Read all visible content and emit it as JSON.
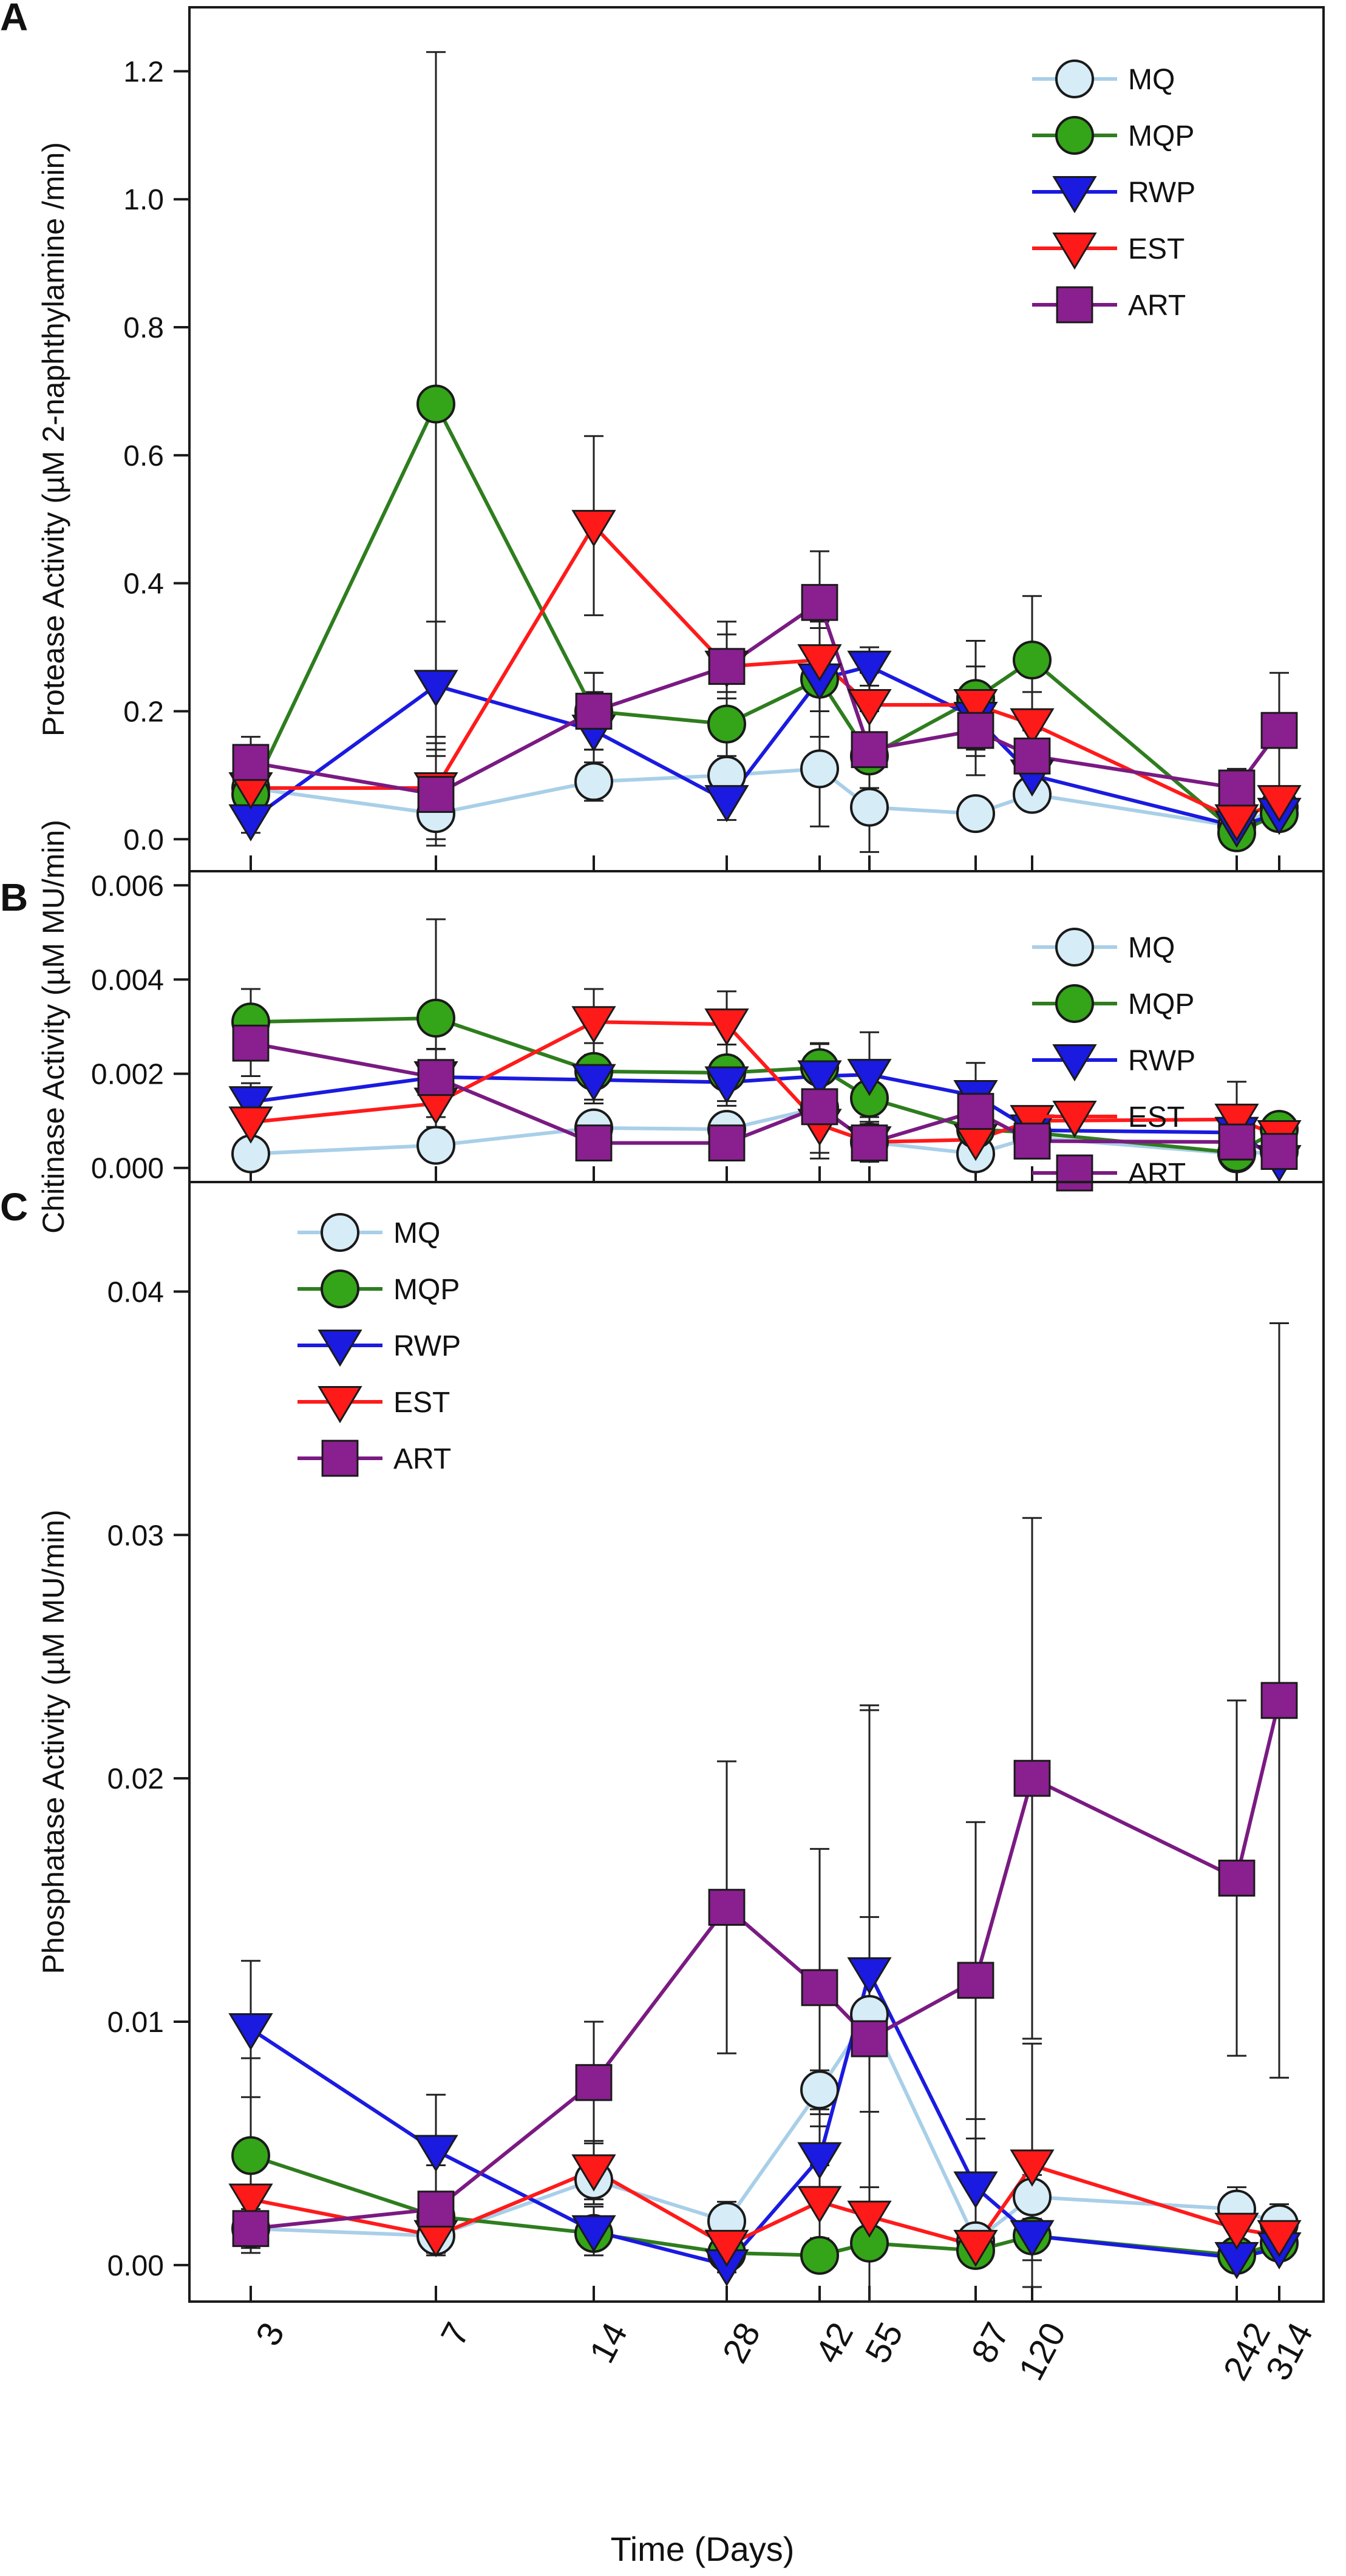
{
  "figure": {
    "xlabel": "Time (Days)",
    "x_tick_labels": [
      "3",
      "7",
      "14",
      "28",
      "42",
      "55",
      "87",
      "120",
      "242",
      "314"
    ]
  },
  "styles": {
    "MQ": {
      "color": "#a9cfe8",
      "fill": "#d6ecf7",
      "marker": "circle"
    },
    "MQP": {
      "color": "#2e7d1e",
      "fill": "#34a418",
      "marker": "circle"
    },
    "RWP": {
      "color": "#1a1ae0",
      "fill": "#1a1ae0",
      "marker": "triangle-down"
    },
    "EST": {
      "color": "#ff1a1a",
      "fill": "#ff1a1a",
      "marker": "triangle-down"
    },
    "ART": {
      "color": "#7a1a82",
      "fill": "#8a1f8f",
      "marker": "square"
    },
    "errorbar_color": "#222222"
  },
  "chart_data": [
    {
      "type": "line",
      "panel_label": "A",
      "title": "",
      "xlabel": "Time (Days)",
      "ylabel": "Protease Activity (µM 2-naphthylamine /min)",
      "x": [
        "3",
        "7",
        "14",
        "28",
        "42",
        "55",
        "87",
        "120",
        "242",
        "314"
      ],
      "ylim": [
        -0.05,
        1.3
      ],
      "yticks": [
        "0.0",
        "0.2",
        "0.4",
        "0.6",
        "0.8",
        "1.0",
        "1.2"
      ],
      "ytick_values": [
        0,
        0.2,
        0.4,
        0.6,
        0.8,
        1.0,
        1.2
      ],
      "legend_position": "top-right",
      "series": [
        {
          "name": "MQ",
          "values": [
            0.08,
            0.04,
            0.09,
            0.1,
            0.11,
            0.05,
            0.04,
            0.07,
            0.02,
            0.05
          ],
          "errors": [
            0.02,
            0.02,
            0.03,
            0.02,
            0.09,
            0.02,
            0.01,
            0.02,
            0.01,
            0.02
          ]
        },
        {
          "name": "MQP",
          "values": [
            0.07,
            0.68,
            0.2,
            0.18,
            0.25,
            0.13,
            0.22,
            0.28,
            0.01,
            0.04
          ],
          "errors": [
            0.04,
            0.55,
            0.06,
            0.05,
            0.05,
            0.15,
            0.09,
            0.1,
            0.01,
            0.02
          ]
        },
        {
          "name": "RWP",
          "values": [
            0.03,
            0.24,
            0.17,
            0.06,
            0.25,
            0.27,
            0.19,
            0.1,
            0.02,
            0.04
          ],
          "errors": [
            0.02,
            0.1,
            0.06,
            0.03,
            0.09,
            0.03,
            0.05,
            0.03,
            0.01,
            0.02
          ]
        },
        {
          "name": "EST",
          "values": [
            0.08,
            0.08,
            0.49,
            0.27,
            0.28,
            0.21,
            0.21,
            0.18,
            0.03,
            0.06
          ],
          "errors": [
            0.03,
            0.08,
            0.14,
            0.05,
            0.05,
            0.05,
            0.06,
            0.05,
            0.01,
            0.02
          ]
        },
        {
          "name": "ART",
          "values": [
            0.12,
            0.07,
            0.2,
            0.27,
            0.37,
            0.14,
            0.17,
            0.13,
            0.08,
            0.17
          ],
          "errors": [
            0.04,
            0.08,
            0.06,
            0.07,
            0.08,
            0.06,
            0.07,
            0.04,
            0.03,
            0.09
          ]
        }
      ]
    },
    {
      "type": "line",
      "panel_label": "B",
      "title": "",
      "xlabel": "Time (Days)",
      "ylabel": "Chitinase Activity (µM MU/min)",
      "x": [
        "3",
        "7",
        "14",
        "28",
        "42",
        "55",
        "87",
        "120",
        "242",
        "314"
      ],
      "ylim": [
        -0.0003,
        0.0063
      ],
      "yticks": [
        "0.000",
        "0.002",
        "0.004",
        "0.006"
      ],
      "ytick_values": [
        0,
        0.002,
        0.004,
        0.006
      ],
      "legend_position": "top-right",
      "series": [
        {
          "name": "MQ",
          "values": [
            0.0003,
            0.00048,
            0.00085,
            0.00082,
            0.00128,
            0.00055,
            0.0003,
            0.00065,
            0.0003,
            0.00035
          ],
          "errors": [
            0.0001,
            0.0001,
            0.0001,
            0.0001,
            0.0002,
            0.0001,
            0.0001,
            0.0001,
            0.0001,
            0.0001
          ]
        },
        {
          "name": "MQP",
          "values": [
            0.0031,
            0.00318,
            0.00205,
            0.00202,
            0.00213,
            0.00148,
            0.00082,
            0.00075,
            0.00032,
            0.00082
          ],
          "errors": [
            0.0007,
            0.0021,
            0.0006,
            0.0006,
            0.0005,
            0.0005,
            0.0003,
            0.0002,
            0.0002,
            0.0003
          ]
        },
        {
          "name": "RWP",
          "values": [
            0.0014,
            0.00193,
            0.00187,
            0.00182,
            0.00195,
            0.00198,
            0.00153,
            0.0008,
            0.00075,
            0.00015
          ],
          "errors": [
            0.0004,
            0.0006,
            0.0005,
            0.0005,
            0.0007,
            0.0009,
            0.0007,
            0.0002,
            0.0002,
            0.0001
          ]
        },
        {
          "name": "EST",
          "values": [
            0.00097,
            0.00137,
            0.0031,
            0.00305,
            0.00092,
            0.00055,
            0.0006,
            0.001,
            0.00103,
            0.00068
          ],
          "errors": [
            0.0004,
            0.0005,
            0.0007,
            0.0007,
            0.0006,
            0.0002,
            0.0002,
            0.0002,
            0.0008,
            0.0003
          ]
        },
        {
          "name": "ART",
          "values": [
            0.00265,
            0.00192,
            0.00053,
            0.00053,
            0.0013,
            0.00053,
            0.0012,
            0.00057,
            0.00055,
            0.00035
          ],
          "errors": [
            0.0007,
            0.0006,
            0.0001,
            0.0001,
            0.0011,
            0.0004,
            0.0003,
            0.0001,
            0.0002,
            0.0001
          ]
        }
      ]
    },
    {
      "type": "line",
      "panel_label": "C",
      "title": "",
      "xlabel": "Time (Days)",
      "ylabel": "Phosphatase Activity (µM MU/min)",
      "x": [
        "3",
        "7",
        "14",
        "28",
        "42",
        "55",
        "87",
        "120",
        "242",
        "314"
      ],
      "ylim": [
        -0.0015,
        0.0445
      ],
      "yticks": [
        "0.00",
        "0.01",
        "0.02",
        "0.03",
        "0.04"
      ],
      "ytick_values": [
        0,
        0.01,
        0.02,
        0.03,
        0.04
      ],
      "legend_position": "top-left",
      "series": [
        {
          "name": "MQ",
          "values": [
            0.0015,
            0.0012,
            0.0035,
            0.0018,
            0.0072,
            0.0103,
            0.001,
            0.0028,
            0.0023,
            0.0017
          ],
          "errors": [
            0.0005,
            0.0004,
            0.001,
            0.0008,
            0.0008,
            0.004,
            0.0005,
            0.0009,
            0.0009,
            0.0008
          ]
        },
        {
          "name": "MQP",
          "values": [
            0.0045,
            0.002,
            0.0013,
            0.0005,
            0.0004,
            0.0009,
            0.0006,
            0.0012,
            0.0004,
            0.0009
          ],
          "errors": [
            0.004,
            0.001,
            0.0005,
            0.0003,
            0.0002,
            0.0004,
            0.0003,
            0.0005,
            0.0002,
            0.0004
          ]
        },
        {
          "name": "RWP",
          "values": [
            0.0097,
            0.0047,
            0.0014,
            0.0,
            0.0044,
            0.012,
            0.0032,
            0.0012,
            0.0003,
            0.0007
          ],
          "errors": [
            0.0028,
            0.0023,
            0.001,
            0.0003,
            0.0018,
            0.011,
            0.0028,
            0.001,
            0.0003,
            0.0004
          ]
        },
        {
          "name": "EST",
          "values": [
            0.0027,
            0.0012,
            0.0039,
            0.0008,
            0.0026,
            0.002,
            0.0008,
            0.0041,
            0.0015,
            0.0012
          ],
          "errors": [
            0.0018,
            0.0008,
            0.0012,
            0.0005,
            0.0015,
            0.0012,
            0.0005,
            0.005,
            0.0008,
            0.0006
          ]
        },
        {
          "name": "ART",
          "values": [
            0.0015,
            0.0023,
            0.0075,
            0.0147,
            0.0114,
            0.0093,
            0.0117,
            0.02,
            0.0159,
            0.0232
          ],
          "errors": [
            0.0008,
            0.0018,
            0.0025,
            0.006,
            0.0057,
            0.0135,
            0.0065,
            0.0107,
            0.0073,
            0.0155
          ]
        }
      ]
    }
  ]
}
